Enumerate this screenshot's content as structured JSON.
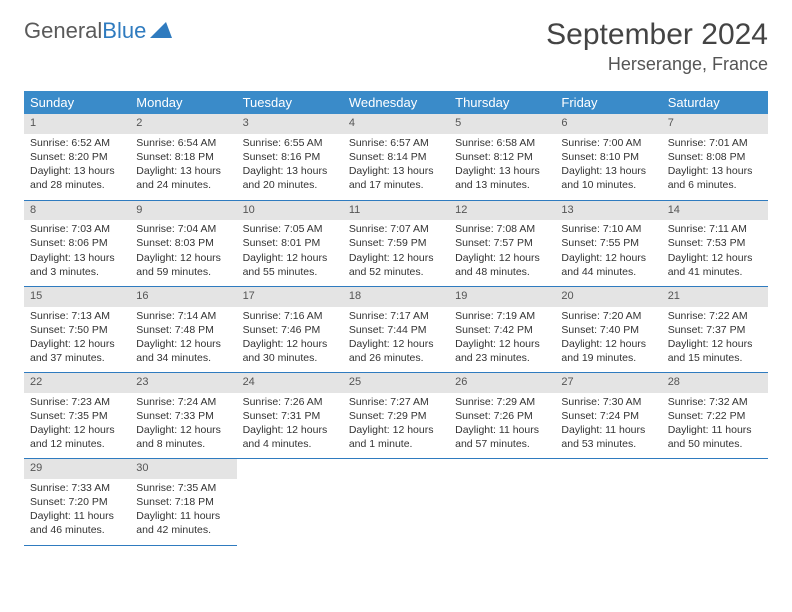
{
  "logo": {
    "part1": "General",
    "part2": "Blue"
  },
  "header": {
    "month": "September 2024",
    "location": "Herserange, France"
  },
  "colors": {
    "header_bg": "#3a8bc9",
    "header_text": "#ffffff",
    "daynum_bg": "#e4e4e4",
    "border": "#2f7bbf",
    "logo_gray": "#5a5a5a",
    "logo_blue": "#2f7bbf"
  },
  "weekdays": [
    "Sunday",
    "Monday",
    "Tuesday",
    "Wednesday",
    "Thursday",
    "Friday",
    "Saturday"
  ],
  "days": [
    {
      "n": "1",
      "sr": "Sunrise: 6:52 AM",
      "ss": "Sunset: 8:20 PM",
      "d1": "Daylight: 13 hours",
      "d2": "and 28 minutes."
    },
    {
      "n": "2",
      "sr": "Sunrise: 6:54 AM",
      "ss": "Sunset: 8:18 PM",
      "d1": "Daylight: 13 hours",
      "d2": "and 24 minutes."
    },
    {
      "n": "3",
      "sr": "Sunrise: 6:55 AM",
      "ss": "Sunset: 8:16 PM",
      "d1": "Daylight: 13 hours",
      "d2": "and 20 minutes."
    },
    {
      "n": "4",
      "sr": "Sunrise: 6:57 AM",
      "ss": "Sunset: 8:14 PM",
      "d1": "Daylight: 13 hours",
      "d2": "and 17 minutes."
    },
    {
      "n": "5",
      "sr": "Sunrise: 6:58 AM",
      "ss": "Sunset: 8:12 PM",
      "d1": "Daylight: 13 hours",
      "d2": "and 13 minutes."
    },
    {
      "n": "6",
      "sr": "Sunrise: 7:00 AM",
      "ss": "Sunset: 8:10 PM",
      "d1": "Daylight: 13 hours",
      "d2": "and 10 minutes."
    },
    {
      "n": "7",
      "sr": "Sunrise: 7:01 AM",
      "ss": "Sunset: 8:08 PM",
      "d1": "Daylight: 13 hours",
      "d2": "and 6 minutes."
    },
    {
      "n": "8",
      "sr": "Sunrise: 7:03 AM",
      "ss": "Sunset: 8:06 PM",
      "d1": "Daylight: 13 hours",
      "d2": "and 3 minutes."
    },
    {
      "n": "9",
      "sr": "Sunrise: 7:04 AM",
      "ss": "Sunset: 8:03 PM",
      "d1": "Daylight: 12 hours",
      "d2": "and 59 minutes."
    },
    {
      "n": "10",
      "sr": "Sunrise: 7:05 AM",
      "ss": "Sunset: 8:01 PM",
      "d1": "Daylight: 12 hours",
      "d2": "and 55 minutes."
    },
    {
      "n": "11",
      "sr": "Sunrise: 7:07 AM",
      "ss": "Sunset: 7:59 PM",
      "d1": "Daylight: 12 hours",
      "d2": "and 52 minutes."
    },
    {
      "n": "12",
      "sr": "Sunrise: 7:08 AM",
      "ss": "Sunset: 7:57 PM",
      "d1": "Daylight: 12 hours",
      "d2": "and 48 minutes."
    },
    {
      "n": "13",
      "sr": "Sunrise: 7:10 AM",
      "ss": "Sunset: 7:55 PM",
      "d1": "Daylight: 12 hours",
      "d2": "and 44 minutes."
    },
    {
      "n": "14",
      "sr": "Sunrise: 7:11 AM",
      "ss": "Sunset: 7:53 PM",
      "d1": "Daylight: 12 hours",
      "d2": "and 41 minutes."
    },
    {
      "n": "15",
      "sr": "Sunrise: 7:13 AM",
      "ss": "Sunset: 7:50 PM",
      "d1": "Daylight: 12 hours",
      "d2": "and 37 minutes."
    },
    {
      "n": "16",
      "sr": "Sunrise: 7:14 AM",
      "ss": "Sunset: 7:48 PM",
      "d1": "Daylight: 12 hours",
      "d2": "and 34 minutes."
    },
    {
      "n": "17",
      "sr": "Sunrise: 7:16 AM",
      "ss": "Sunset: 7:46 PM",
      "d1": "Daylight: 12 hours",
      "d2": "and 30 minutes."
    },
    {
      "n": "18",
      "sr": "Sunrise: 7:17 AM",
      "ss": "Sunset: 7:44 PM",
      "d1": "Daylight: 12 hours",
      "d2": "and 26 minutes."
    },
    {
      "n": "19",
      "sr": "Sunrise: 7:19 AM",
      "ss": "Sunset: 7:42 PM",
      "d1": "Daylight: 12 hours",
      "d2": "and 23 minutes."
    },
    {
      "n": "20",
      "sr": "Sunrise: 7:20 AM",
      "ss": "Sunset: 7:40 PM",
      "d1": "Daylight: 12 hours",
      "d2": "and 19 minutes."
    },
    {
      "n": "21",
      "sr": "Sunrise: 7:22 AM",
      "ss": "Sunset: 7:37 PM",
      "d1": "Daylight: 12 hours",
      "d2": "and 15 minutes."
    },
    {
      "n": "22",
      "sr": "Sunrise: 7:23 AM",
      "ss": "Sunset: 7:35 PM",
      "d1": "Daylight: 12 hours",
      "d2": "and 12 minutes."
    },
    {
      "n": "23",
      "sr": "Sunrise: 7:24 AM",
      "ss": "Sunset: 7:33 PM",
      "d1": "Daylight: 12 hours",
      "d2": "and 8 minutes."
    },
    {
      "n": "24",
      "sr": "Sunrise: 7:26 AM",
      "ss": "Sunset: 7:31 PM",
      "d1": "Daylight: 12 hours",
      "d2": "and 4 minutes."
    },
    {
      "n": "25",
      "sr": "Sunrise: 7:27 AM",
      "ss": "Sunset: 7:29 PM",
      "d1": "Daylight: 12 hours",
      "d2": "and 1 minute."
    },
    {
      "n": "26",
      "sr": "Sunrise: 7:29 AM",
      "ss": "Sunset: 7:26 PM",
      "d1": "Daylight: 11 hours",
      "d2": "and 57 minutes."
    },
    {
      "n": "27",
      "sr": "Sunrise: 7:30 AM",
      "ss": "Sunset: 7:24 PM",
      "d1": "Daylight: 11 hours",
      "d2": "and 53 minutes."
    },
    {
      "n": "28",
      "sr": "Sunrise: 7:32 AM",
      "ss": "Sunset: 7:22 PM",
      "d1": "Daylight: 11 hours",
      "d2": "and 50 minutes."
    },
    {
      "n": "29",
      "sr": "Sunrise: 7:33 AM",
      "ss": "Sunset: 7:20 PM",
      "d1": "Daylight: 11 hours",
      "d2": "and 46 minutes."
    },
    {
      "n": "30",
      "sr": "Sunrise: 7:35 AM",
      "ss": "Sunset: 7:18 PM",
      "d1": "Daylight: 11 hours",
      "d2": "and 42 minutes."
    }
  ]
}
